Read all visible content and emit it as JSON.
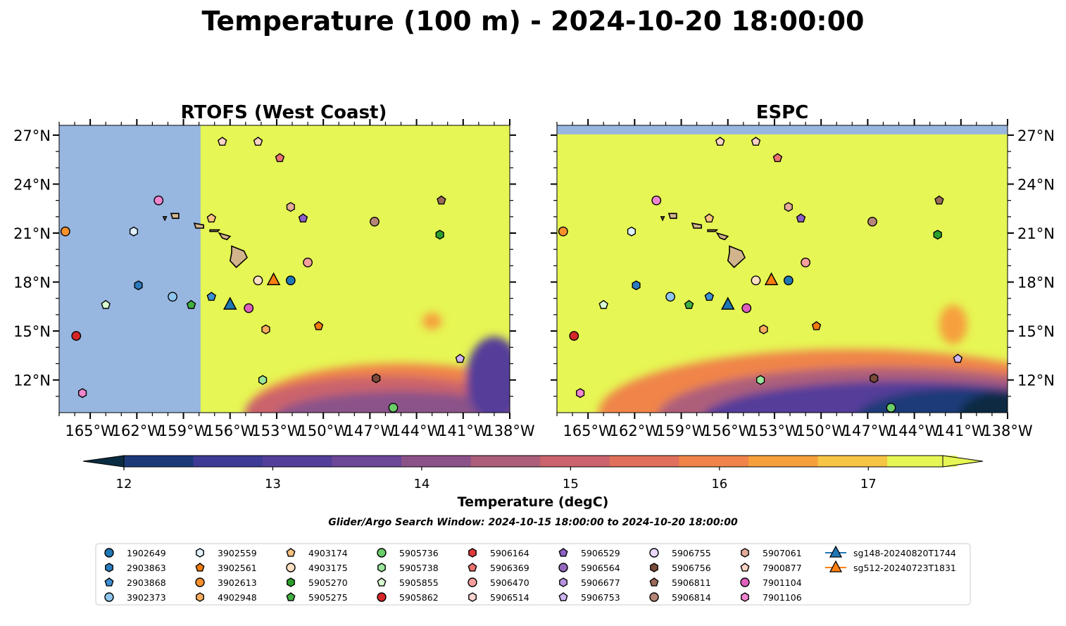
{
  "title": "Temperature (100 m) - 2024-10-20 18:00:00",
  "panels": [
    {
      "title": "RTOFS (West Coast)"
    },
    {
      "title": "ESPC"
    }
  ],
  "map": {
    "lon_range": [
      -167,
      -138
    ],
    "lat_range": [
      10,
      27.6
    ],
    "lon_ticks": [
      "165°W",
      "162°W",
      "159°W",
      "156°W",
      "153°W",
      "150°W",
      "147°W",
      "144°W",
      "141°W",
      "138°W"
    ],
    "lat_ticks": [
      "27°N",
      "24°N",
      "21°N",
      "18°N",
      "15°N",
      "12°N"
    ],
    "land_color": "#d2b48c",
    "nodata_color": "#97b6e0",
    "warm_color": "#e6f654"
  },
  "colorbar": {
    "label": "Temperature (degC)",
    "ticks": [
      "12",
      "13",
      "14",
      "15",
      "16",
      "17"
    ],
    "colors": [
      "#0a2c42",
      "#1c3a78",
      "#3d3b96",
      "#543e9a",
      "#6d4697",
      "#8b5289",
      "#ad5e7a",
      "#ca636c",
      "#e0705b",
      "#f0844a",
      "#f6a03c",
      "#f6c544",
      "#e6f654"
    ]
  },
  "search_window": "Glider/Argo Search Window: 2024-10-15 18:00:00 to 2024-10-20 18:00:00",
  "legend": [
    {
      "label": "1902649",
      "color": "#1f77b4",
      "marker": "circle"
    },
    {
      "label": "2903863",
      "color": "#2b7bbd",
      "marker": "hexagon"
    },
    {
      "label": "2903868",
      "color": "#3d8fd4",
      "marker": "pentagon"
    },
    {
      "label": "3902373",
      "color": "#8fc6ee",
      "marker": "circle"
    },
    {
      "label": "3902559",
      "color": "#dff0fc",
      "marker": "hexagon"
    },
    {
      "label": "3902561",
      "color": "#f27b0c",
      "marker": "pentagon"
    },
    {
      "label": "3902613",
      "color": "#f8902c",
      "marker": "circle"
    },
    {
      "label": "4902948",
      "color": "#fbad5e",
      "marker": "hexagon"
    },
    {
      "label": "4903174",
      "color": "#fbc281",
      "marker": "pentagon"
    },
    {
      "label": "4903175",
      "color": "#fde0c2",
      "marker": "circle"
    },
    {
      "label": "5905270",
      "color": "#2ca02c",
      "marker": "hexagon"
    },
    {
      "label": "5905275",
      "color": "#40b040",
      "marker": "pentagon"
    },
    {
      "label": "5905736",
      "color": "#6acd6a",
      "marker": "circle"
    },
    {
      "label": "5905738",
      "color": "#9ce59c",
      "marker": "hexagon"
    },
    {
      "label": "5905855",
      "color": "#d8fbd2",
      "marker": "pentagon"
    },
    {
      "label": "5905862",
      "color": "#d62728",
      "marker": "circle"
    },
    {
      "label": "5906164",
      "color": "#e0393a",
      "marker": "hexagon"
    },
    {
      "label": "5906369",
      "color": "#ec7270",
      "marker": "pentagon"
    },
    {
      "label": "5906470",
      "color": "#f59f9d",
      "marker": "circle"
    },
    {
      "label": "5906514",
      "color": "#fbd4d2",
      "marker": "hexagon"
    },
    {
      "label": "5906529",
      "color": "#8e5fc7",
      "marker": "pentagon"
    },
    {
      "label": "5906564",
      "color": "#9467bd",
      "marker": "circle"
    },
    {
      "label": "5906677",
      "color": "#b894e0",
      "marker": "hexagon"
    },
    {
      "label": "5906753",
      "color": "#d0b6f4",
      "marker": "pentagon"
    },
    {
      "label": "5906755",
      "color": "#e9d8fb",
      "marker": "circle"
    },
    {
      "label": "5906756",
      "color": "#7a4b3a",
      "marker": "hexagon"
    },
    {
      "label": "5906811",
      "color": "#9b6a59",
      "marker": "pentagon"
    },
    {
      "label": "5906814",
      "color": "#b58677",
      "marker": "circle"
    },
    {
      "label": "5907061",
      "color": "#e3ab98",
      "marker": "hexagon"
    },
    {
      "label": "7900877",
      "color": "#fcd3c5",
      "marker": "pentagon"
    },
    {
      "label": "7901104",
      "color": "#df5fbd",
      "marker": "circle"
    },
    {
      "label": "7901106",
      "color": "#ef86cf",
      "marker": "hexagon"
    },
    {
      "label": "sg148-20240820T1744",
      "color": "#1f77b4",
      "marker": "triangle",
      "line": true
    },
    {
      "label": "sg512-20240723T1831",
      "color": "#ff7f0e",
      "marker": "triangle",
      "line": true
    }
  ],
  "platforms": [
    {
      "id": "3902613",
      "lon": -166.6,
      "lat": 21.1,
      "color": "#f8902c",
      "marker": "circle"
    },
    {
      "id": "5905862",
      "lon": -165.9,
      "lat": 14.7,
      "color": "#d62728",
      "marker": "circle"
    },
    {
      "id": "7901106",
      "lon": -165.5,
      "lat": 11.2,
      "color": "#ef86cf",
      "marker": "hexagon"
    },
    {
      "id": "5905855",
      "lon": -164.0,
      "lat": 16.6,
      "color": "#d8fbd2",
      "marker": "pentagon"
    },
    {
      "id": "3902559",
      "lon": -162.2,
      "lat": 21.1,
      "color": "#dff0fc",
      "marker": "hexagon"
    },
    {
      "id": "2903863",
      "lon": -161.9,
      "lat": 17.8,
      "color": "#2b7bbd",
      "marker": "hexagon"
    },
    {
      "id": "7901104_b",
      "lon": -160.6,
      "lat": 23.0,
      "color": "#ef86cf",
      "marker": "circle"
    },
    {
      "id": "3902373",
      "lon": -159.7,
      "lat": 17.1,
      "color": "#8fc6ee",
      "marker": "circle"
    },
    {
      "id": "5905275",
      "lon": -158.5,
      "lat": 16.6,
      "color": "#40b040",
      "marker": "pentagon"
    },
    {
      "id": "4903174",
      "lon": -157.2,
      "lat": 21.9,
      "color": "#fbc281",
      "marker": "pentagon"
    },
    {
      "id": "2903868",
      "lon": -157.2,
      "lat": 17.1,
      "color": "#3d8fd4",
      "marker": "pentagon"
    },
    {
      "id": "7900877",
      "lon": -156.5,
      "lat": 26.6,
      "color": "#fcd3c5",
      "marker": "pentagon"
    },
    {
      "id": "5906753_a",
      "lon": -154.2,
      "lat": 26.6,
      "color": "#fcd3c5",
      "marker": "pentagon"
    },
    {
      "id": "5906369",
      "lon": -152.8,
      "lat": 25.6,
      "color": "#ec7270",
      "marker": "pentagon"
    },
    {
      "id": "5907061",
      "lon": -152.1,
      "lat": 22.6,
      "color": "#e3ab98",
      "marker": "hexagon"
    },
    {
      "id": "5906529",
      "lon": -151.3,
      "lat": 21.9,
      "color": "#8e5fc7",
      "marker": "pentagon"
    },
    {
      "id": "5906470",
      "lon": -151.0,
      "lat": 19.2,
      "color": "#f59f9d",
      "marker": "circle"
    },
    {
      "id": "4903175",
      "lon": -154.2,
      "lat": 18.1,
      "color": "#fde0c2",
      "marker": "circle"
    },
    {
      "id": "1902649",
      "lon": -152.1,
      "lat": 18.1,
      "color": "#1f77b4",
      "marker": "circle"
    },
    {
      "id": "7901104",
      "lon": -154.8,
      "lat": 16.4,
      "color": "#df5fbd",
      "marker": "circle"
    },
    {
      "id": "4902948",
      "lon": -153.7,
      "lat": 15.1,
      "color": "#fbad5e",
      "marker": "hexagon"
    },
    {
      "id": "3902561",
      "lon": -150.3,
      "lat": 15.3,
      "color": "#f27b0c",
      "marker": "pentagon"
    },
    {
      "id": "5905738",
      "lon": -153.9,
      "lat": 12.0,
      "color": "#9ce59c",
      "marker": "hexagon"
    },
    {
      "id": "5906814",
      "lon": -146.7,
      "lat": 21.7,
      "color": "#b58677",
      "marker": "circle"
    },
    {
      "id": "5906811",
      "lon": -142.4,
      "lat": 23.0,
      "color": "#9b6a59",
      "marker": "pentagon"
    },
    {
      "id": "5905270",
      "lon": -142.5,
      "lat": 20.9,
      "color": "#2ca02c",
      "marker": "hexagon"
    },
    {
      "id": "5906756",
      "lon": -146.6,
      "lat": 12.1,
      "color": "#7a4b3a",
      "marker": "hexagon"
    },
    {
      "id": "5905736",
      "lon": -145.5,
      "lat": 10.3,
      "color": "#6acd6a",
      "marker": "circle"
    },
    {
      "id": "5906753",
      "lon": -141.2,
      "lat": 13.3,
      "color": "#d0b6f4",
      "marker": "pentagon"
    }
  ],
  "gliders": [
    {
      "id": "sg148-20240820T1744",
      "lon": -156.0,
      "lat": 16.6,
      "color": "#1f77b4"
    },
    {
      "id": "sg512-20240723T1831",
      "lon": -153.2,
      "lat": 18.1,
      "color": "#ff7f0e"
    }
  ]
}
